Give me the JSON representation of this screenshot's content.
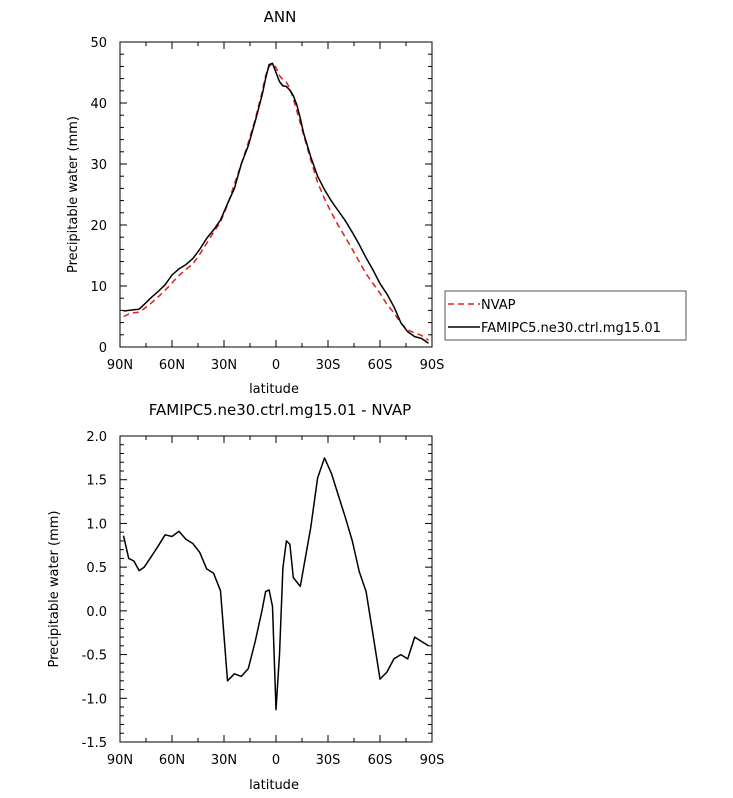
{
  "chart_data": [
    {
      "type": "line",
      "title": "ANN",
      "xlabel": "latitude",
      "ylabel": "Precipitable water (mm)",
      "xlim": [
        90,
        -90
      ],
      "ylim": [
        0,
        50
      ],
      "x_ticks": [
        90,
        60,
        30,
        0,
        -30,
        -60,
        -90
      ],
      "x_tick_labels": [
        "90N",
        "60N",
        "30N",
        "0",
        "30S",
        "60S",
        "90S"
      ],
      "y_ticks": [
        0,
        10,
        20,
        30,
        40,
        50
      ],
      "y_tick_labels": [
        "0",
        "10",
        "20",
        "30",
        "40",
        "50"
      ],
      "legend": {
        "position": "right",
        "entries": [
          "NVAP",
          "FAMIPC5.ne30.ctrl.mg15.01"
        ]
      },
      "series": [
        {
          "name": "NVAP",
          "color": "#e0201b",
          "dash": "dashed",
          "x": [
            88,
            85,
            82,
            79,
            76,
            72,
            68,
            64,
            60,
            56,
            52,
            48,
            44,
            40,
            36,
            32,
            28,
            24,
            20,
            16,
            12,
            8,
            6,
            4,
            2,
            0,
            -2,
            -4,
            -6,
            -8,
            -10,
            -12,
            -14,
            -16,
            -20,
            -24,
            -28,
            -32,
            -36,
            -40,
            -44,
            -48,
            -52,
            -56,
            -60,
            -64,
            -68,
            -72,
            -76,
            -80,
            -84,
            -88
          ],
          "y": [
            5.0,
            5.4,
            5.6,
            5.7,
            6.3,
            7.2,
            8.2,
            9.3,
            10.5,
            11.7,
            12.7,
            13.6,
            15.2,
            17.0,
            18.8,
            20.5,
            23.3,
            26.7,
            30.0,
            33.5,
            37.3,
            41.8,
            44.5,
            46.0,
            46.5,
            45.8,
            44.5,
            43.8,
            43.4,
            42.4,
            40.7,
            38.7,
            36.7,
            34.7,
            30.7,
            27.0,
            24.3,
            22.0,
            19.9,
            18.0,
            16.0,
            14.0,
            12.0,
            10.4,
            8.8,
            7.0,
            5.6,
            3.9,
            2.8,
            2.3,
            1.9,
            1.1
          ]
        },
        {
          "name": "FAMIPC5.ne30.ctrl.mg15.01",
          "color": "#000000",
          "dash": "solid",
          "x": [
            88,
            85,
            82,
            79,
            76,
            72,
            68,
            64,
            60,
            56,
            52,
            48,
            44,
            40,
            36,
            32,
            28,
            24,
            20,
            16,
            12,
            8,
            6,
            4,
            2,
            0,
            -2,
            -4,
            -6,
            -8,
            -10,
            -12,
            -14,
            -16,
            -20,
            -24,
            -28,
            -32,
            -36,
            -40,
            -44,
            -48,
            -52,
            -56,
            -60,
            -64,
            -68,
            -72,
            -76,
            -80,
            -84,
            -88
          ],
          "y": [
            5.9,
            6.0,
            6.1,
            6.2,
            7.0,
            8.1,
            9.1,
            10.2,
            11.8,
            12.8,
            13.5,
            14.5,
            16.0,
            17.8,
            19.2,
            20.8,
            23.5,
            26.0,
            30.0,
            33.0,
            37.0,
            41.3,
            44.0,
            46.3,
            46.5,
            45.0,
            43.5,
            42.8,
            42.7,
            42.1,
            41.2,
            39.7,
            37.5,
            35.0,
            31.2,
            28.0,
            25.8,
            23.9,
            22.3,
            20.7,
            18.8,
            16.8,
            14.6,
            12.6,
            10.4,
            8.7,
            6.6,
            4.0,
            2.5,
            1.7,
            1.4,
            0.6
          ]
        }
      ]
    },
    {
      "type": "line",
      "title": "FAMIPC5.ne30.ctrl.mg15.01 - NVAP",
      "xlabel": "latitude",
      "ylabel": "Precipitable water (mm)",
      "xlim": [
        90,
        -90
      ],
      "ylim": [
        -1.5,
        2.0
      ],
      "x_ticks": [
        90,
        60,
        30,
        0,
        -30,
        -60,
        -90
      ],
      "x_tick_labels": [
        "90N",
        "60N",
        "30N",
        "0",
        "30S",
        "60S",
        "90S"
      ],
      "y_ticks": [
        -1.5,
        -1.0,
        -0.5,
        0.0,
        0.5,
        1.0,
        1.5,
        2.0
      ],
      "y_tick_labels": [
        "-1.5",
        "-1.0",
        "-0.5",
        "0.0",
        "0.5",
        "1.0",
        "1.5",
        "2.0"
      ],
      "series": [
        {
          "color": "#000000",
          "dash": "solid",
          "x": [
            88,
            85,
            82,
            79,
            76,
            72,
            68,
            64,
            60,
            56,
            52,
            48,
            44,
            40,
            36,
            32,
            28,
            24,
            20,
            16,
            12,
            8,
            6,
            4,
            2,
            0,
            -2,
            -4,
            -6,
            -8,
            -10,
            -12,
            -14,
            -16,
            -20,
            -24,
            -28,
            -32,
            -36,
            -40,
            -44,
            -48,
            -52,
            -56,
            -60,
            -64,
            -68,
            -72,
            -76,
            -80,
            -84,
            -88
          ],
          "y": [
            0.86,
            0.6,
            0.57,
            0.46,
            0.5,
            0.62,
            0.74,
            0.87,
            0.85,
            0.91,
            0.82,
            0.77,
            0.67,
            0.48,
            0.43,
            0.23,
            -0.8,
            -0.72,
            -0.75,
            -0.66,
            -0.35,
            0.01,
            0.22,
            0.24,
            0.05,
            -1.13,
            -0.5,
            0.49,
            0.8,
            0.76,
            0.38,
            0.33,
            0.28,
            0.5,
            0.95,
            1.52,
            1.75,
            1.57,
            1.32,
            1.07,
            0.8,
            0.45,
            0.22,
            -0.28,
            -0.78,
            -0.7,
            -0.55,
            -0.5,
            -0.55,
            -0.3,
            -0.35,
            -0.4
          ]
        }
      ]
    }
  ]
}
